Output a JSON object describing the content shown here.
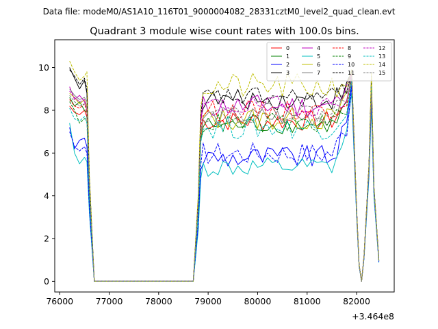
{
  "chart_data": {
    "type": "line",
    "suptitle": "Data file: modeM0/AS1A10_116T01_9000004082_28331cztM0_level2_quad_clean.evt",
    "title": "Quadrant 3 module wise count rates with 100.0s bins.",
    "xlabel": "",
    "ylabel": "",
    "x_offset_label": "+3.464e8",
    "xlim": [
      75900,
      82760
    ],
    "ylim": [
      -0.5,
      11.3
    ],
    "xticks": [
      76000,
      77000,
      78000,
      79000,
      80000,
      81000,
      82000
    ],
    "xtick_labels": [
      "76000",
      "77000",
      "78000",
      "79000",
      "80000",
      "81000",
      "82000"
    ],
    "yticks": [
      0,
      2,
      4,
      6,
      8,
      10
    ],
    "ytick_labels": [
      "0",
      "2",
      "4",
      "6",
      "8",
      "10"
    ],
    "grid": false,
    "legend_position": "upper right",
    "legend_columns": 4,
    "series": [
      {
        "name": "0",
        "color": "#ff0000",
        "dash": false,
        "base": 7.5,
        "amp": 0.3,
        "pre": [
          8.2,
          7.9,
          7.8,
          8.0,
          7.7,
          4.0
        ],
        "near": 9.5
      },
      {
        "name": "1",
        "color": "#008000",
        "dash": false,
        "base": 7.3,
        "amp": 0.25,
        "pre": [
          8.6,
          8.2,
          8.4,
          8.0,
          7.9,
          4.2
        ],
        "near": 9.6
      },
      {
        "name": "2",
        "color": "#0000ff",
        "dash": false,
        "base": 5.8,
        "amp": 0.35,
        "pre": [
          7.2,
          6.2,
          6.6,
          6.7,
          6.3,
          3.5
        ],
        "near": 9.2
      },
      {
        "name": "3",
        "color": "#000000",
        "dash": false,
        "base": 8.5,
        "amp": 0.3,
        "pre": [
          10.0,
          9.5,
          9.0,
          9.4,
          8.8,
          4.8
        ],
        "near": 9.8
      },
      {
        "name": "4",
        "color": "#bf00bf",
        "dash": false,
        "base": 8.2,
        "amp": 0.35,
        "pre": [
          9.1,
          8.5,
          8.7,
          8.4,
          8.1,
          4.4
        ],
        "near": 9.7
      },
      {
        "name": "5",
        "color": "#00bfbf",
        "dash": false,
        "base": 5.3,
        "amp": 0.3,
        "pre": [
          7.4,
          6.0,
          5.5,
          5.8,
          5.6,
          3.2
        ],
        "near": 8.8
      },
      {
        "name": "6",
        "color": "#bfbf00",
        "dash": false,
        "base": 7.6,
        "amp": 0.35,
        "pre": [
          8.8,
          8.6,
          8.3,
          8.5,
          8.2,
          4.3
        ],
        "near": 9.6
      },
      {
        "name": "7",
        "color": "#808080",
        "dash": false,
        "base": 7.7,
        "amp": 0.3,
        "pre": [
          9.0,
          8.7,
          8.5,
          8.6,
          8.4,
          4.5
        ],
        "near": 9.6
      },
      {
        "name": "8",
        "color": "#ff0000",
        "dash": true,
        "base": 8.0,
        "amp": 0.3,
        "pre": [
          8.5,
          8.2,
          8.1,
          8.3,
          7.9,
          4.3
        ],
        "near": 9.7
      },
      {
        "name": "9",
        "color": "#008000",
        "dash": true,
        "base": 7.4,
        "amp": 0.3,
        "pre": [
          8.4,
          8.0,
          7.4,
          7.6,
          7.7,
          4.1
        ],
        "near": 9.5
      },
      {
        "name": "10",
        "color": "#0000ff",
        "dash": true,
        "base": 6.0,
        "amp": 0.35,
        "pre": [
          7.0,
          6.3,
          6.1,
          6.3,
          6.0,
          3.4
        ],
        "near": 9.1
      },
      {
        "name": "11",
        "color": "#000000",
        "dash": true,
        "base": 8.6,
        "amp": 0.3,
        "pre": [
          9.9,
          9.6,
          9.2,
          9.5,
          9.0,
          4.8
        ],
        "near": 9.9
      },
      {
        "name": "12",
        "color": "#bf00bf",
        "dash": true,
        "base": 8.2,
        "amp": 0.3,
        "pre": [
          8.9,
          8.6,
          8.4,
          8.5,
          8.0,
          4.4
        ],
        "near": 9.6
      },
      {
        "name": "13",
        "color": "#00bfbf",
        "dash": true,
        "base": 7.2,
        "amp": 0.35,
        "pre": [
          8.1,
          7.6,
          7.5,
          7.7,
          7.4,
          4.0
        ],
        "near": 9.4
      },
      {
        "name": "14",
        "color": "#bfbf00",
        "dash": true,
        "base": 9.1,
        "amp": 0.4,
        "pre": [
          10.3,
          9.8,
          9.4,
          9.6,
          9.8,
          5.0
        ],
        "near": 9.9
      },
      {
        "name": "15",
        "color": "#808080",
        "dash": true,
        "base": 7.9,
        "amp": 0.3,
        "pre": [
          8.7,
          8.4,
          8.2,
          8.3,
          8.1,
          4.4
        ],
        "near": 9.6
      }
    ],
    "tail_profile": [
      0.35,
      0.08,
      0.0,
      0.12,
      0.55,
      0.95,
      0.45,
      0.1
    ]
  }
}
